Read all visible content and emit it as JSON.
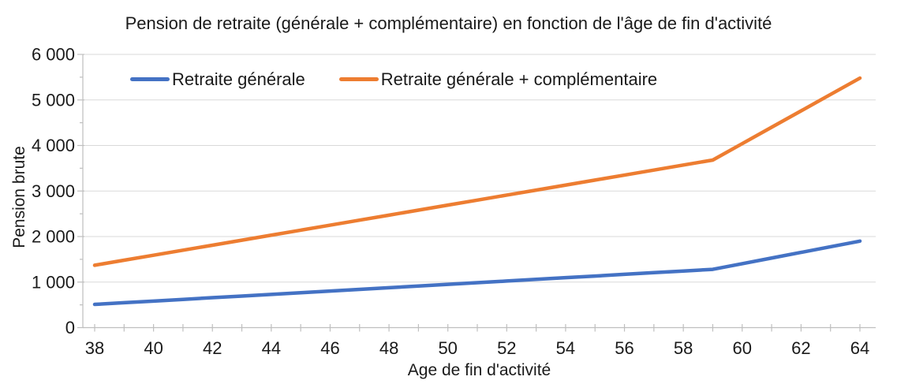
{
  "chart_data": {
    "type": "line",
    "title": "Pension de retraite (générale + complémentaire) en fonction de l'âge de fin d'activité",
    "xlabel": "Age de fin d'activité",
    "ylabel": "Pension brute",
    "x": [
      38,
      39,
      40,
      41,
      42,
      43,
      44,
      45,
      46,
      47,
      48,
      49,
      50,
      51,
      52,
      53,
      54,
      55,
      56,
      57,
      58,
      59,
      60,
      61,
      62,
      63,
      64
    ],
    "series": [
      {
        "name": "Retraite générale",
        "color": "#4472C4",
        "values": [
          510,
          547,
          583,
          620,
          657,
          693,
          730,
          767,
          803,
          840,
          877,
          913,
          950,
          987,
          1023,
          1060,
          1097,
          1133,
          1170,
          1207,
          1243,
          1280,
          1404,
          1528,
          1652,
          1776,
          1900
        ]
      },
      {
        "name": "Retraite générale + complémentaire",
        "color": "#ED7D31",
        "values": [
          1370,
          1480,
          1590,
          1700,
          1810,
          1920,
          2030,
          2140,
          2250,
          2360,
          2470,
          2580,
          2690,
          2800,
          2910,
          3020,
          3130,
          3240,
          3350,
          3460,
          3570,
          3680,
          4040,
          4400,
          4760,
          5120,
          5480
        ]
      }
    ],
    "ylim": [
      0,
      6000
    ],
    "yticks": [
      0,
      1000,
      2000,
      3000,
      4000,
      5000,
      6000
    ],
    "ytick_minor_step": 500,
    "xticks_labeled": [
      38,
      40,
      42,
      44,
      46,
      48,
      50,
      52,
      54,
      56,
      58,
      60,
      62,
      64
    ],
    "xticks_minor_every": 1,
    "grid": "horizontal",
    "legend_position": "top-inside",
    "colors": {
      "gridline": "#D9D9D9",
      "axis": "#BFBFBF",
      "text": "#1a1a1a",
      "background": "#FFFFFF"
    }
  }
}
